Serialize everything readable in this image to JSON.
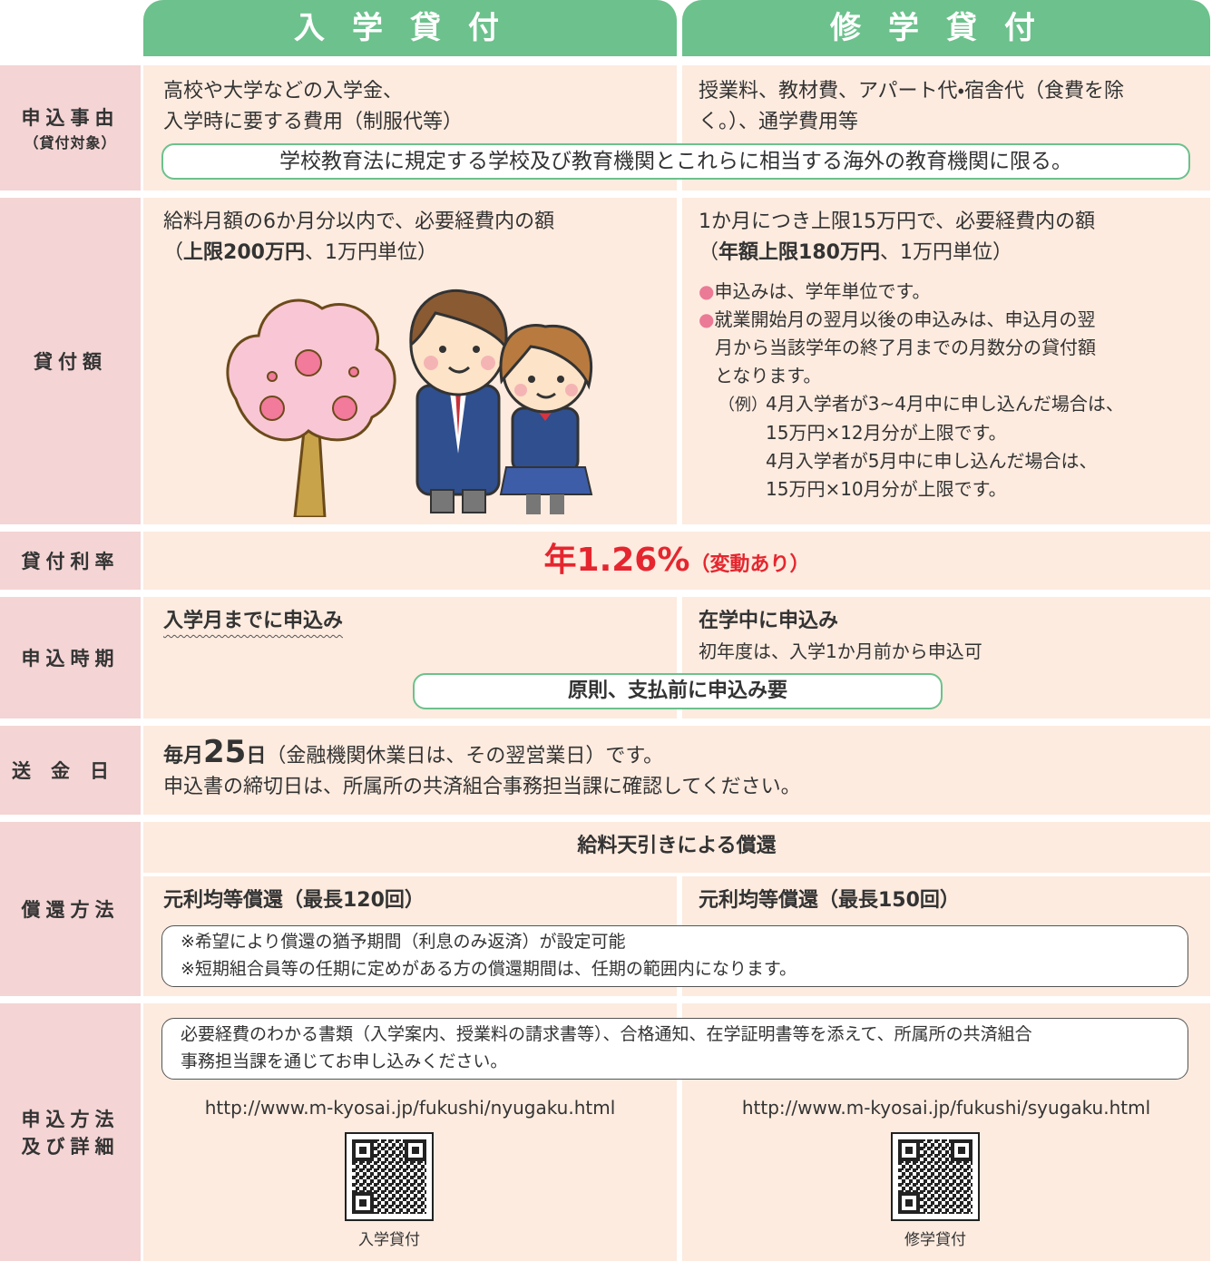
{
  "header": {
    "left": "入学貸付",
    "right": "修学貸付"
  },
  "reason": {
    "label": "申込事由",
    "sublabel": "（貸付対象）",
    "left": [
      "高校や大学などの入学金、",
      "入学時に要する費用（制服代等）"
    ],
    "right": [
      "授業料、教材費、アパート代・宿舎代（食費を除",
      "く。）、通学費用等"
    ],
    "note": "学校教育法に規定する学校及び教育機関とこれらに相当する海外の教育機関に限る。"
  },
  "amount": {
    "label": "貸付額",
    "left": {
      "line1": "給料月額の6か月分以内で、必要経費内の額",
      "open": "（",
      "bold": "上限200万円",
      "rest": "、1万円単位）"
    },
    "right": {
      "line1": "1か月につき上限15万円で、必要経費内の額",
      "open": "（",
      "bold": "年額上限180万円",
      "rest": "、1万円単位）"
    },
    "bullets": [
      [
        "申込みは、学年単位です。"
      ],
      [
        "就業開始月の翌月以後の申込みは、申込月の翌",
        "月から当該学年の終了月までの月数分の貸付額",
        "となります。"
      ]
    ],
    "example": {
      "prefix": "（例）",
      "lines": [
        "4月入学者が3~4月中に申し込んだ場合は、",
        "15万円×12月分が上限です。",
        "4月入学者が5月中に申し込んだ場合は、",
        "15万円×10月分が上限です。"
      ]
    }
  },
  "rate": {
    "label": "貸付利率",
    "value": "年1.26%",
    "note": "（変動あり）"
  },
  "timing": {
    "label": "申込時期",
    "left": "入学月までに申込み",
    "right": "在学中に申込み",
    "right_sub": "初年度は、入学1か月前から申込可",
    "note": "原則、支払前に申込み要"
  },
  "remit": {
    "label": "送金日",
    "prefix": "毎月",
    "day": "25",
    "suffix": "日",
    "rest": "（金融機関休業日は、その翌営業日）です。",
    "line2": "申込書の締切日は、所属所の共済組合事務担当課に確認してください。"
  },
  "repay": {
    "label": "償還方法",
    "common": "給料天引きによる償還",
    "left": "元利均等償還（最長120回）",
    "right": "元利均等償還（最長150回）",
    "notes": [
      "※希望により償還の猶予期間（利息のみ返済）が設定可能",
      "※短期組合員等の任期に定めがある方の償還期間は、任期の範囲内になります。"
    ]
  },
  "apply": {
    "label": [
      "申込方法",
      "及び詳細"
    ],
    "note": [
      "必要経費のわかる書類（入学案内、授業料の請求書等）、合格通知、在学証明書等を添えて、所属所の共済組合",
      "事務担当課を通じてお申し込みください。"
    ],
    "left_url": "http://www.m-kyosai.jp/fukushi/nyugaku.html",
    "right_url": "http://www.m-kyosai.jp/fukushi/syugaku.html",
    "left_caption": "入学貸付",
    "right_caption": "修学貸付"
  }
}
